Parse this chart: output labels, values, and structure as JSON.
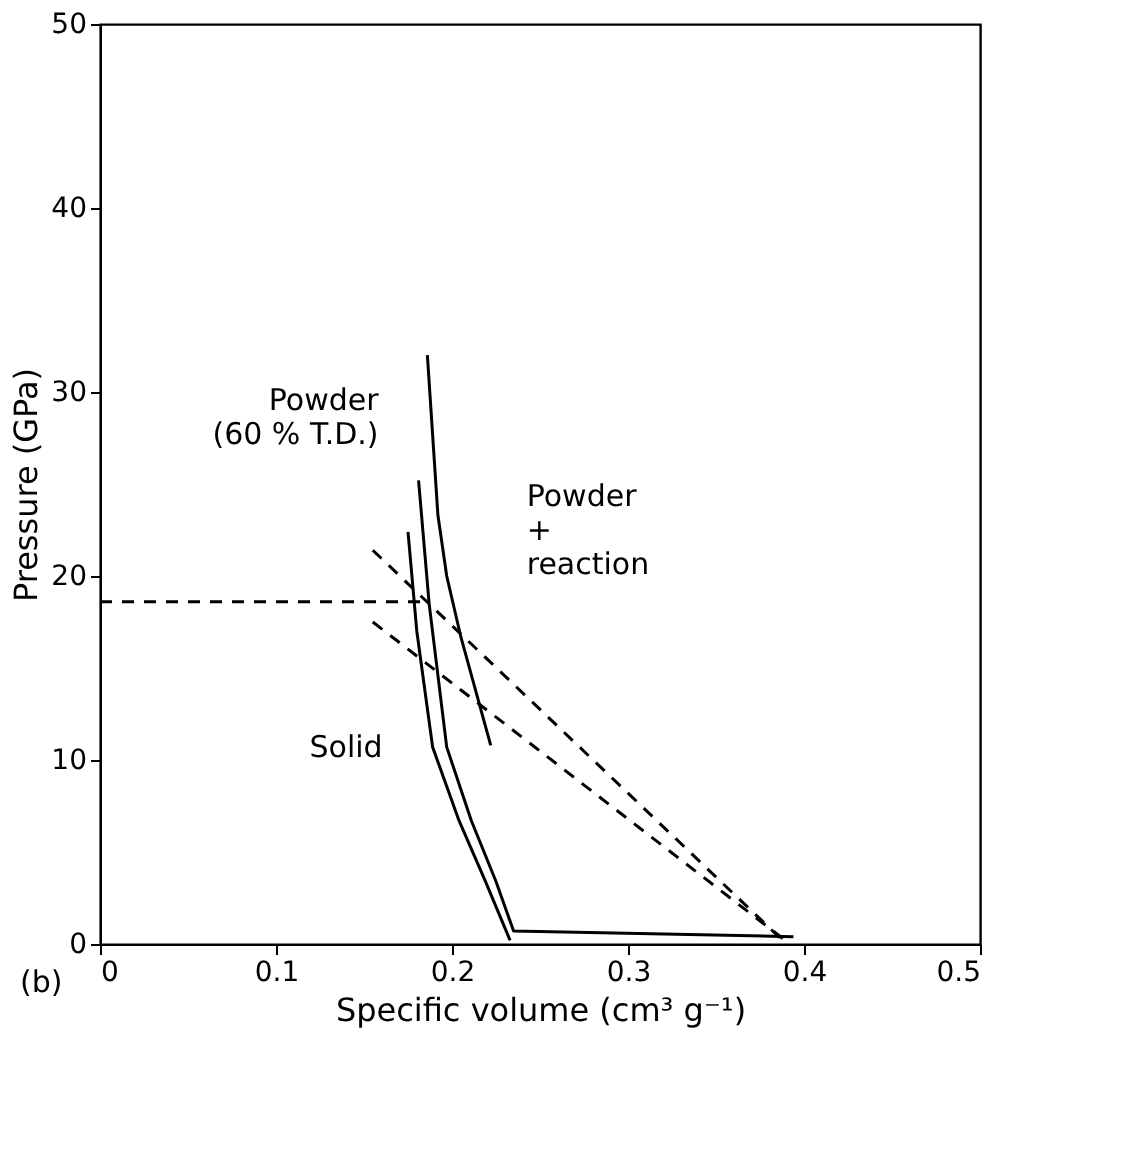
{
  "chart_data": {
    "type": "line",
    "xlabel": "Specific volume (cm³ g⁻¹)",
    "ylabel": "Pressure (GPa)",
    "xlim": [
      0,
      0.5
    ],
    "xticks": [
      0,
      0.1,
      0.2,
      0.3,
      0.4,
      0.5
    ],
    "ylim": [
      0,
      50
    ],
    "yticks": [
      0,
      10,
      20,
      30,
      40,
      50
    ],
    "grid": false,
    "marker": "none",
    "series": [
      {
        "color": "#000000",
        "line_style": "solid",
        "x": [
          0.175,
          0.18,
          0.189,
          0.204,
          0.219,
          0.233
        ],
        "values": [
          22.4,
          17,
          10.7,
          6.7,
          3.4,
          0.2
        ]
      },
      {
        "color": "#000000",
        "line_style": "solid",
        "x": [
          0.181,
          0.187,
          0.197,
          0.211,
          0.225,
          0.235,
          0.394
        ],
        "values": [
          25.2,
          18.5,
          10.7,
          6.7,
          3.4,
          0.7,
          0.4
        ]
      },
      {
        "color": "#000000",
        "line_style": "solid",
        "x": [
          0.186,
          0.192,
          0.197,
          0.205,
          0.222
        ],
        "values": [
          32.0,
          23.3,
          20.0,
          16.7,
          10.8
        ]
      },
      {
        "color": "#000000",
        "line_style": "dashed",
        "x": [
          0.155,
          0.39
        ],
        "values": [
          21.4,
          0
        ]
      },
      {
        "color": "#000000",
        "line_style": "dashed",
        "x": [
          0.155,
          0.392
        ],
        "values": [
          17.5,
          0
        ]
      },
      {
        "color": "#000000",
        "line_style": "dashed",
        "x": [
          0,
          0.187
        ],
        "values": [
          18.6,
          18.6
        ]
      }
    ],
    "annotations": [
      {
        "text": "Powder\n(60 % T.D.)",
        "x": 0.181,
        "y": 25.2
      },
      {
        "text": "Powder\n+\nreaction",
        "x": 0.197,
        "y": 20.0
      },
      {
        "text": "Solid",
        "x": 0.189,
        "y": 10.7
      },
      "(b)"
    ]
  }
}
